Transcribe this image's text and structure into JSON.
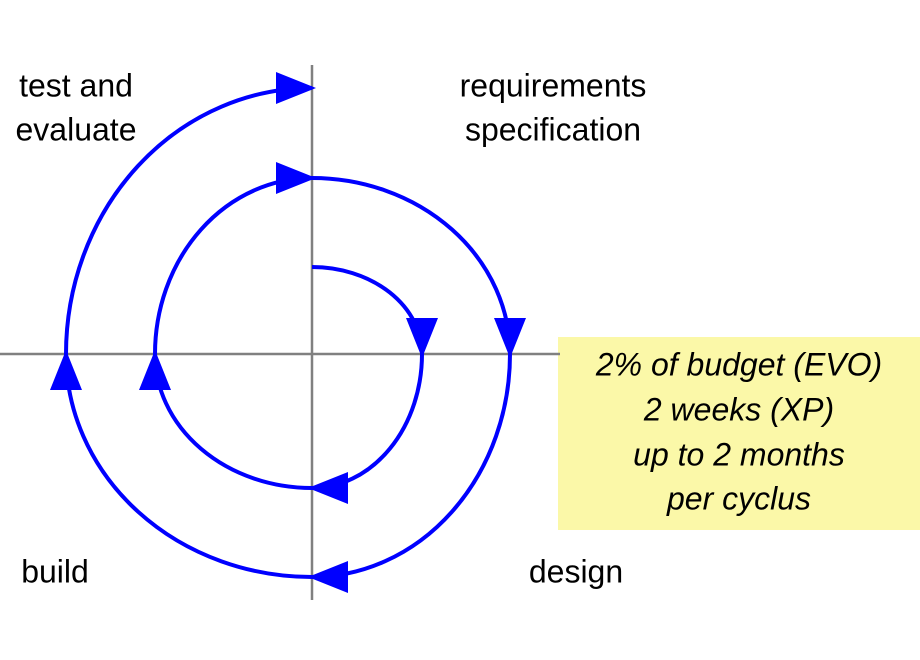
{
  "quadrants": {
    "top_left": [
      "test and",
      "evaluate"
    ],
    "top_right": [
      "requirements",
      "specification"
    ],
    "bottom_left": [
      "build"
    ],
    "bottom_right": [
      "design"
    ]
  },
  "note": [
    "2% of budget (EVO)",
    "2 weeks (XP)",
    "up to 2 months",
    "per cyclus"
  ]
}
